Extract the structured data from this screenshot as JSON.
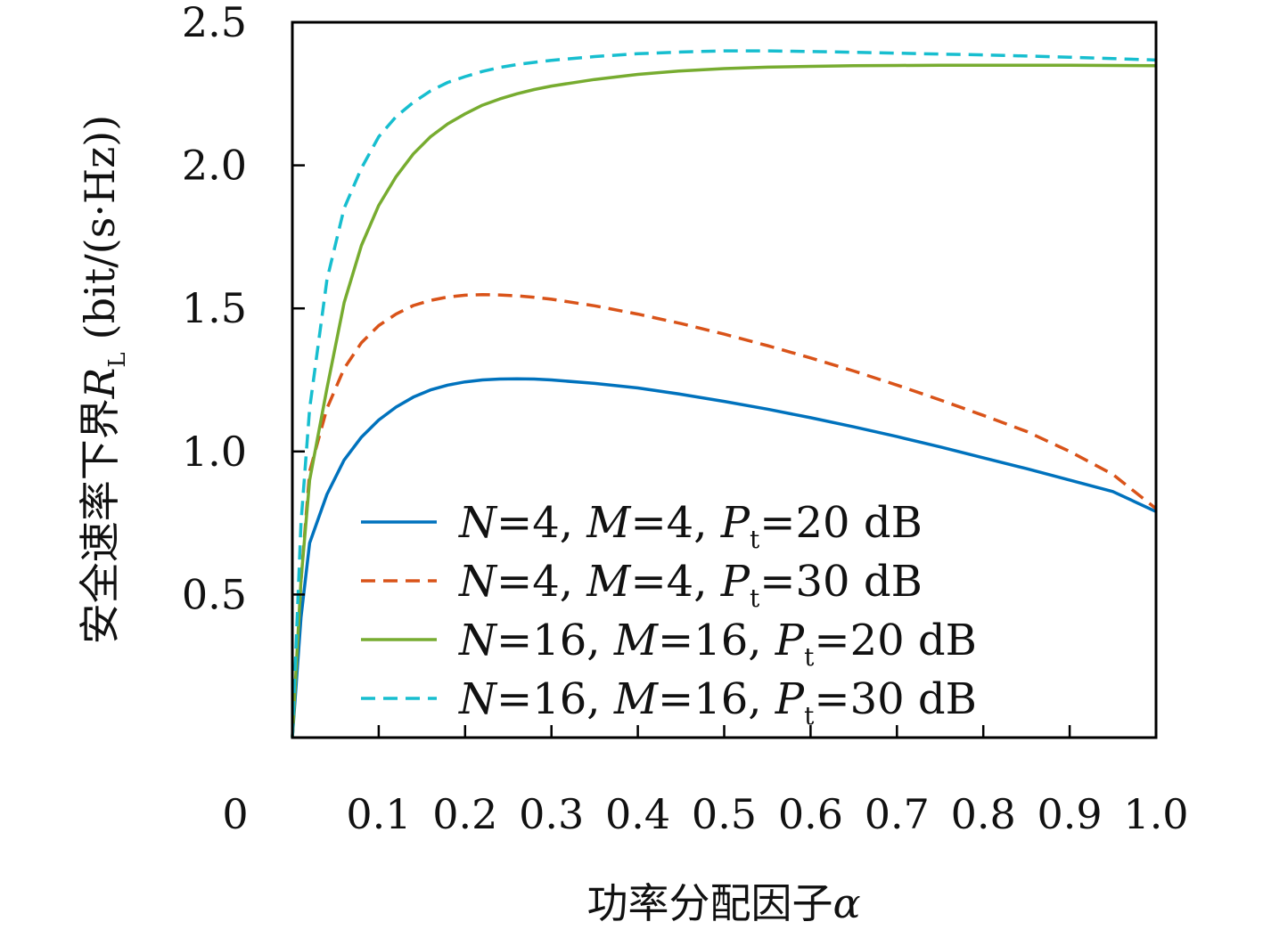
{
  "chart_data": {
    "type": "line",
    "title": "",
    "xlabel": "功率分配因子α",
    "ylabel": "安全速率下界R_L (bit/(s·Hz))",
    "ylabel_parts": {
      "prefix": "安全速率下界",
      "symbol": "R",
      "subscript": "L",
      "unit": "(bit/(s·Hz))"
    },
    "xlabel_parts": {
      "prefix": "功率分配因子",
      "symbol": "α"
    },
    "xlim": [
      0,
      1.0
    ],
    "ylim": [
      0,
      2.5
    ],
    "x_ticks": [
      {
        "value": 0,
        "label": "0"
      },
      {
        "value": 0.1,
        "label": "0.1"
      },
      {
        "value": 0.2,
        "label": "0.2"
      },
      {
        "value": 0.3,
        "label": "0.3"
      },
      {
        "value": 0.4,
        "label": "0.4"
      },
      {
        "value": 0.5,
        "label": "0.5"
      },
      {
        "value": 0.6,
        "label": "0.6"
      },
      {
        "value": 0.7,
        "label": "0.7"
      },
      {
        "value": 0.8,
        "label": "0.8"
      },
      {
        "value": 0.9,
        "label": "0.9"
      },
      {
        "value": 1.0,
        "label": "1.0"
      }
    ],
    "y_ticks": [
      {
        "value": 0.5,
        "label": "0.5"
      },
      {
        "value": 1.0,
        "label": "1.0"
      },
      {
        "value": 1.5,
        "label": "1.5"
      },
      {
        "value": 2.0,
        "label": "2.0"
      },
      {
        "value": 2.5,
        "label": "2.5"
      }
    ],
    "grid": false,
    "legend_position": "lower-center",
    "x": [
      0.0,
      0.01,
      0.02,
      0.04,
      0.06,
      0.08,
      0.1,
      0.12,
      0.14,
      0.16,
      0.18,
      0.2,
      0.22,
      0.24,
      0.26,
      0.28,
      0.3,
      0.35,
      0.4,
      0.45,
      0.5,
      0.55,
      0.6,
      0.65,
      0.7,
      0.75,
      0.8,
      0.85,
      0.9,
      0.95,
      1.0
    ],
    "series": [
      {
        "name": "N=4, M=4, P_t=20 dB",
        "legend": {
          "N": "4",
          "M": "4",
          "Pt_sub": "t",
          "power": "20 dB"
        },
        "color": "#0072bd",
        "dash": "solid",
        "values": [
          0.0,
          0.42,
          0.68,
          0.85,
          0.97,
          1.05,
          1.11,
          1.155,
          1.19,
          1.215,
          1.232,
          1.243,
          1.25,
          1.253,
          1.254,
          1.253,
          1.25,
          1.238,
          1.222,
          1.2,
          1.175,
          1.148,
          1.118,
          1.086,
          1.052,
          1.016,
          0.978,
          0.94,
          0.9,
          0.86,
          0.79
        ]
      },
      {
        "name": "N=4, M=4, P_t=30 dB",
        "legend": {
          "N": "4",
          "M": "4",
          "Pt_sub": "t",
          "power": "30 dB"
        },
        "color": "#d95319",
        "dash": "dashed",
        "values": [
          0.0,
          0.55,
          0.93,
          1.15,
          1.29,
          1.38,
          1.44,
          1.48,
          1.51,
          1.528,
          1.54,
          1.546,
          1.548,
          1.547,
          1.544,
          1.539,
          1.532,
          1.509,
          1.48,
          1.447,
          1.41,
          1.37,
          1.327,
          1.281,
          1.232,
          1.18,
          1.126,
          1.07,
          1.0,
          0.92,
          0.8
        ]
      },
      {
        "name": "N=16, M=16, P_t=20 dB",
        "legend": {
          "N": "16",
          "M": "16",
          "Pt_sub": "t",
          "power": "20 dB"
        },
        "color": "#77ac30",
        "dash": "solid",
        "values": [
          0.0,
          0.55,
          0.9,
          1.22,
          1.52,
          1.72,
          1.86,
          1.96,
          2.04,
          2.1,
          2.145,
          2.18,
          2.21,
          2.232,
          2.25,
          2.265,
          2.277,
          2.3,
          2.318,
          2.33,
          2.338,
          2.343,
          2.346,
          2.348,
          2.349,
          2.35,
          2.35,
          2.35,
          2.35,
          2.349,
          2.348
        ]
      },
      {
        "name": "N=16, M=16, P_t=30 dB",
        "legend": {
          "N": "16",
          "M": "16",
          "Pt_sub": "t",
          "power": "30 dB"
        },
        "color": "#17becf",
        "dash": "dashed",
        "values": [
          0.0,
          0.75,
          1.15,
          1.6,
          1.85,
          1.99,
          2.1,
          2.17,
          2.22,
          2.26,
          2.29,
          2.31,
          2.328,
          2.342,
          2.352,
          2.36,
          2.367,
          2.38,
          2.39,
          2.396,
          2.4,
          2.4,
          2.398,
          2.395,
          2.392,
          2.389,
          2.386,
          2.382,
          2.378,
          2.373,
          2.368
        ]
      }
    ]
  }
}
